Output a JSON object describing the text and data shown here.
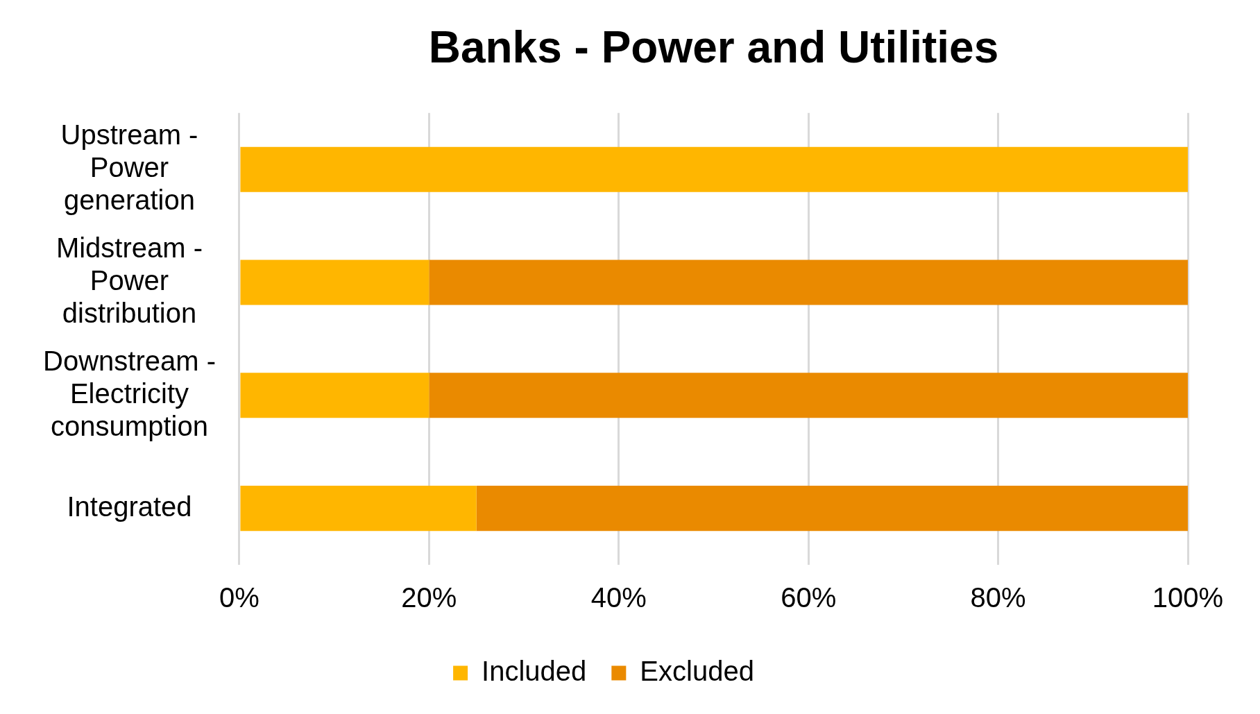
{
  "chart_data": {
    "type": "bar",
    "title": "Banks - Power and Utilities",
    "orientation": "horizontal",
    "stacked": true,
    "categories": [
      "Upstream - Power generation",
      "Midstream - Power distribution",
      "Downstream - Electricity consumption",
      "Integrated"
    ],
    "series": [
      {
        "name": "Included",
        "color": "#ffb600",
        "values": [
          100,
          20,
          20,
          25
        ]
      },
      {
        "name": "Excluded",
        "color": "#ea8a00",
        "values": [
          0,
          80,
          80,
          75
        ]
      }
    ],
    "xlim": [
      0,
      100
    ],
    "xticks": [
      {
        "value": 0,
        "label": "0%"
      },
      {
        "value": 20,
        "label": "20%"
      },
      {
        "value": 40,
        "label": "40%"
      },
      {
        "value": 60,
        "label": "60%"
      },
      {
        "value": 80,
        "label": "80%"
      },
      {
        "value": 100,
        "label": "100%"
      }
    ],
    "grid": "x",
    "legend": "bottom"
  }
}
